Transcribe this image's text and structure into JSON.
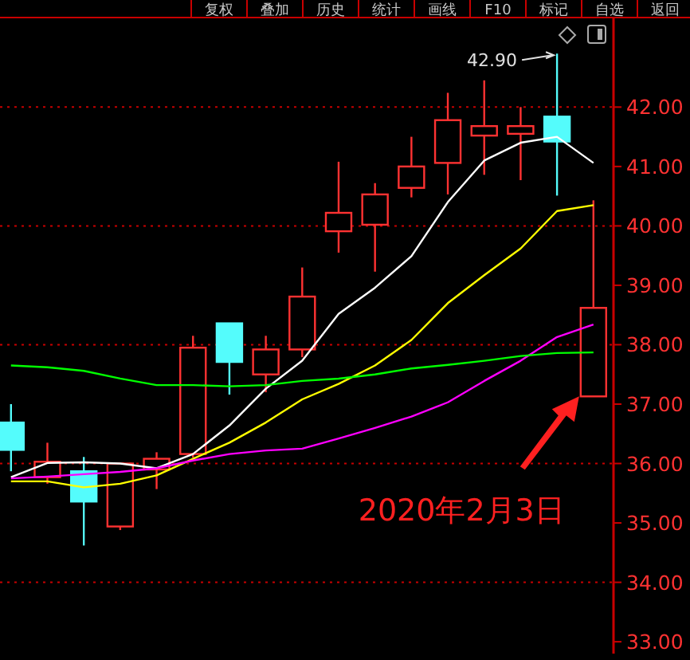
{
  "chart_data": {
    "type": "candlestick",
    "categories": [
      null,
      null,
      null,
      null,
      null,
      null,
      null,
      null,
      null,
      null,
      null,
      null,
      null,
      null,
      null,
      null,
      null
    ],
    "ohlc": [
      [
        36.69,
        37.0,
        35.87,
        36.23
      ],
      [
        35.77,
        36.35,
        35.66,
        36.03
      ],
      [
        35.87,
        36.11,
        34.62,
        35.36
      ],
      [
        34.94,
        36.0,
        34.88,
        36.0
      ],
      [
        35.9,
        36.19,
        35.57,
        36.08
      ],
      [
        36.16,
        38.15,
        36.1,
        37.95
      ],
      [
        38.36,
        38.36,
        37.16,
        37.71
      ],
      [
        37.5,
        38.15,
        37.2,
        37.92
      ],
      [
        37.92,
        39.3,
        37.79,
        38.81
      ],
      [
        39.91,
        41.08,
        39.55,
        40.22
      ],
      [
        40.02,
        40.72,
        39.23,
        40.53
      ],
      [
        40.64,
        41.5,
        40.48,
        41.0
      ],
      [
        41.06,
        42.24,
        40.53,
        41.78
      ],
      [
        41.52,
        42.45,
        40.86,
        41.68
      ],
      [
        41.55,
        42.0,
        40.77,
        41.68
      ],
      [
        41.84,
        42.9,
        40.51,
        41.42
      ],
      [
        37.13,
        40.43,
        37.13,
        38.62
      ]
    ],
    "colors": [
      "#54fcfc",
      "#ff3232",
      "#54fcfc",
      "#ff3232",
      "#ff3232",
      "#ff3232",
      "#54fcfc",
      "#ff3232",
      "#ff3232",
      "#ff3232",
      "#ff3232",
      "#ff3232",
      "#ff3232",
      "#ff3232",
      "#ff3232",
      "#54fcfc",
      "#ff3232"
    ],
    "series": [
      {
        "type": "line",
        "color": "#ffffff",
        "values": [
          35.77,
          36.01,
          36.02,
          36.0,
          35.92,
          36.16,
          36.64,
          37.26,
          37.73,
          38.52,
          38.96,
          39.49,
          40.4,
          41.1,
          41.4,
          41.5,
          41.06
        ]
      },
      {
        "type": "line",
        "color": "#ffff00",
        "values": [
          35.7,
          35.7,
          35.6,
          35.66,
          35.8,
          36.08,
          36.35,
          36.69,
          37.08,
          37.34,
          37.65,
          38.08,
          38.7,
          39.17,
          39.62,
          40.25,
          40.35
        ]
      },
      {
        "type": "line",
        "color": "#ff00ff",
        "values": [
          35.75,
          35.78,
          35.82,
          35.86,
          35.92,
          36.05,
          36.16,
          36.22,
          36.25,
          36.42,
          36.6,
          36.79,
          37.03,
          37.39,
          37.73,
          38.13,
          38.34
        ]
      },
      {
        "type": "line",
        "color": "#00ff00",
        "values": [
          37.65,
          37.62,
          37.56,
          37.43,
          37.32,
          37.32,
          37.3,
          37.32,
          37.39,
          37.43,
          37.5,
          37.6,
          37.66,
          37.73,
          37.81,
          37.86,
          37.87
        ]
      }
    ],
    "ylim": [
      32.8,
      43.4
    ],
    "yticks": [
      {
        "value": 33,
        "label": "33.00"
      },
      {
        "value": 34,
        "label": "34.00"
      },
      {
        "value": 35,
        "label": "35.00"
      },
      {
        "value": 36,
        "label": "36.00"
      },
      {
        "value": 37,
        "label": "37.00"
      },
      {
        "value": 38,
        "label": "38.00"
      },
      {
        "value": 39,
        "label": "39.00"
      },
      {
        "value": 40,
        "label": "40.00"
      },
      {
        "value": 41,
        "label": "41.00"
      },
      {
        "value": 42,
        "label": "42.00"
      }
    ],
    "ref_lines": [
      {
        "axis": "y",
        "value": 34,
        "color": "#c80000",
        "line_style": "dotted"
      },
      {
        "axis": "y",
        "value": 36,
        "color": "#c80000",
        "line_style": "dotted"
      },
      {
        "axis": "y",
        "value": 38,
        "color": "#c80000",
        "line_style": "dotted"
      },
      {
        "axis": "y",
        "value": 40,
        "color": "#c80000",
        "line_style": "dotted"
      },
      {
        "axis": "y",
        "value": 42,
        "color": "#c80000",
        "line_style": "dotted"
      }
    ],
    "annotations": [
      "复权",
      "叠加",
      "历史",
      "统计",
      "画线",
      "F10",
      "标记",
      "自选",
      "返回",
      "42.90",
      "2020年2月3日"
    ],
    "tick_labels": "y"
  }
}
